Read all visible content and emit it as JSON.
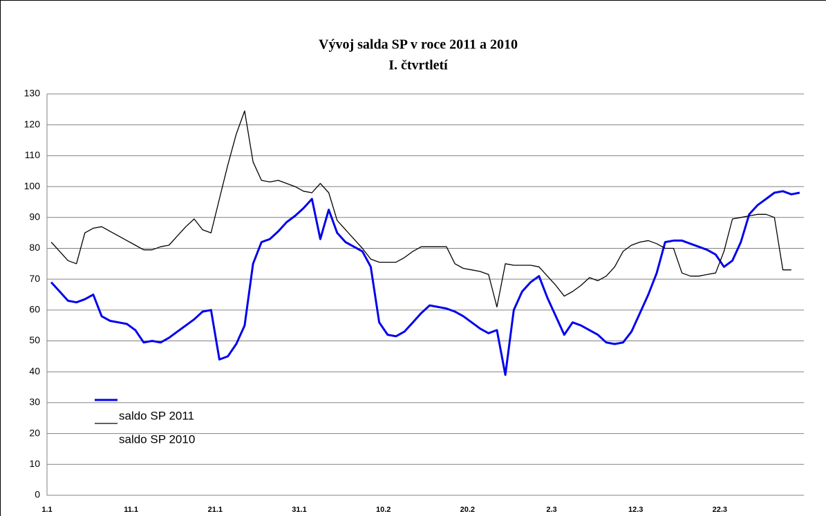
{
  "chart_data": {
    "type": "line",
    "title": "Vývoj salda SP v roce 2011 a 2010",
    "subtitle": "I. čtvrtletí",
    "categories": [
      "1.1",
      null,
      null,
      null,
      null,
      null,
      null,
      null,
      null,
      null,
      "11.1",
      null,
      null,
      null,
      null,
      null,
      null,
      null,
      null,
      null,
      "21.1",
      null,
      null,
      null,
      null,
      null,
      null,
      null,
      null,
      null,
      "31.1",
      null,
      null,
      null,
      null,
      null,
      null,
      null,
      null,
      null,
      "10.2",
      null,
      null,
      null,
      null,
      null,
      null,
      null,
      null,
      null,
      "20.2",
      null,
      null,
      null,
      null,
      null,
      null,
      null,
      null,
      null,
      "2.3",
      null,
      null,
      null,
      null,
      null,
      null,
      null,
      null,
      null,
      "12.3",
      null,
      null,
      null,
      null,
      null,
      null,
      null,
      null,
      null,
      "22.3",
      null,
      null,
      null,
      null,
      null,
      null,
      null,
      null,
      null
    ],
    "series": [
      {
        "name": "saldo SP 2011",
        "color": "#0000ee",
        "values": [
          69,
          66,
          63,
          62.5,
          63.5,
          65,
          58,
          56.5,
          56,
          55.5,
          53.5,
          49.5,
          50,
          49.5,
          51,
          53,
          55,
          57,
          59.5,
          60,
          44,
          45,
          49,
          55,
          75,
          82,
          83,
          85.5,
          88.5,
          90.5,
          93,
          96,
          83,
          92.5,
          85,
          82,
          80.5,
          79,
          74,
          56,
          52,
          51.5,
          53,
          56,
          59,
          61.5,
          61,
          60.5,
          59.5,
          58,
          56,
          54,
          52.5,
          53.5,
          39,
          60,
          66,
          69,
          71,
          64,
          58,
          52,
          56,
          55,
          53.5,
          52,
          49.5,
          49,
          49.5,
          53,
          59,
          65,
          72,
          82,
          82.5,
          82.5,
          81.5,
          80.5,
          79.5,
          78,
          74,
          76,
          82,
          91,
          94,
          96,
          98,
          98.5,
          97.5,
          98
        ]
      },
      {
        "name": "saldo SP 2010",
        "color": "#000000",
        "values": [
          82,
          79,
          76,
          75,
          85,
          86.5,
          87,
          85.5,
          84,
          82.5,
          81,
          79.5,
          79.5,
          80.5,
          81,
          84,
          87,
          89.5,
          86,
          85,
          96,
          107,
          117,
          124.5,
          108,
          102,
          101.5,
          102,
          101,
          100,
          98.5,
          98,
          101,
          98,
          89,
          86,
          83,
          80,
          76.5,
          75.5,
          75.5,
          75.5,
          77,
          79,
          80.5,
          80.5,
          80.5,
          80.5,
          75,
          73.5,
          73,
          72.5,
          71.5,
          61,
          75,
          74.5,
          74.5,
          74.5,
          74,
          71,
          68,
          64.5,
          66,
          68,
          70.5,
          69.5,
          71,
          74,
          79,
          81,
          82,
          82.5,
          81.5,
          80,
          80,
          72,
          71,
          71,
          71.5,
          72,
          79,
          89.5,
          90,
          90.5,
          91,
          91,
          90,
          73,
          73,
          null
        ]
      }
    ],
    "ylim": [
      0,
      130
    ],
    "yticks": [
      0,
      10,
      20,
      30,
      40,
      50,
      60,
      70,
      80,
      90,
      100,
      110,
      120,
      130
    ],
    "grid": true
  }
}
